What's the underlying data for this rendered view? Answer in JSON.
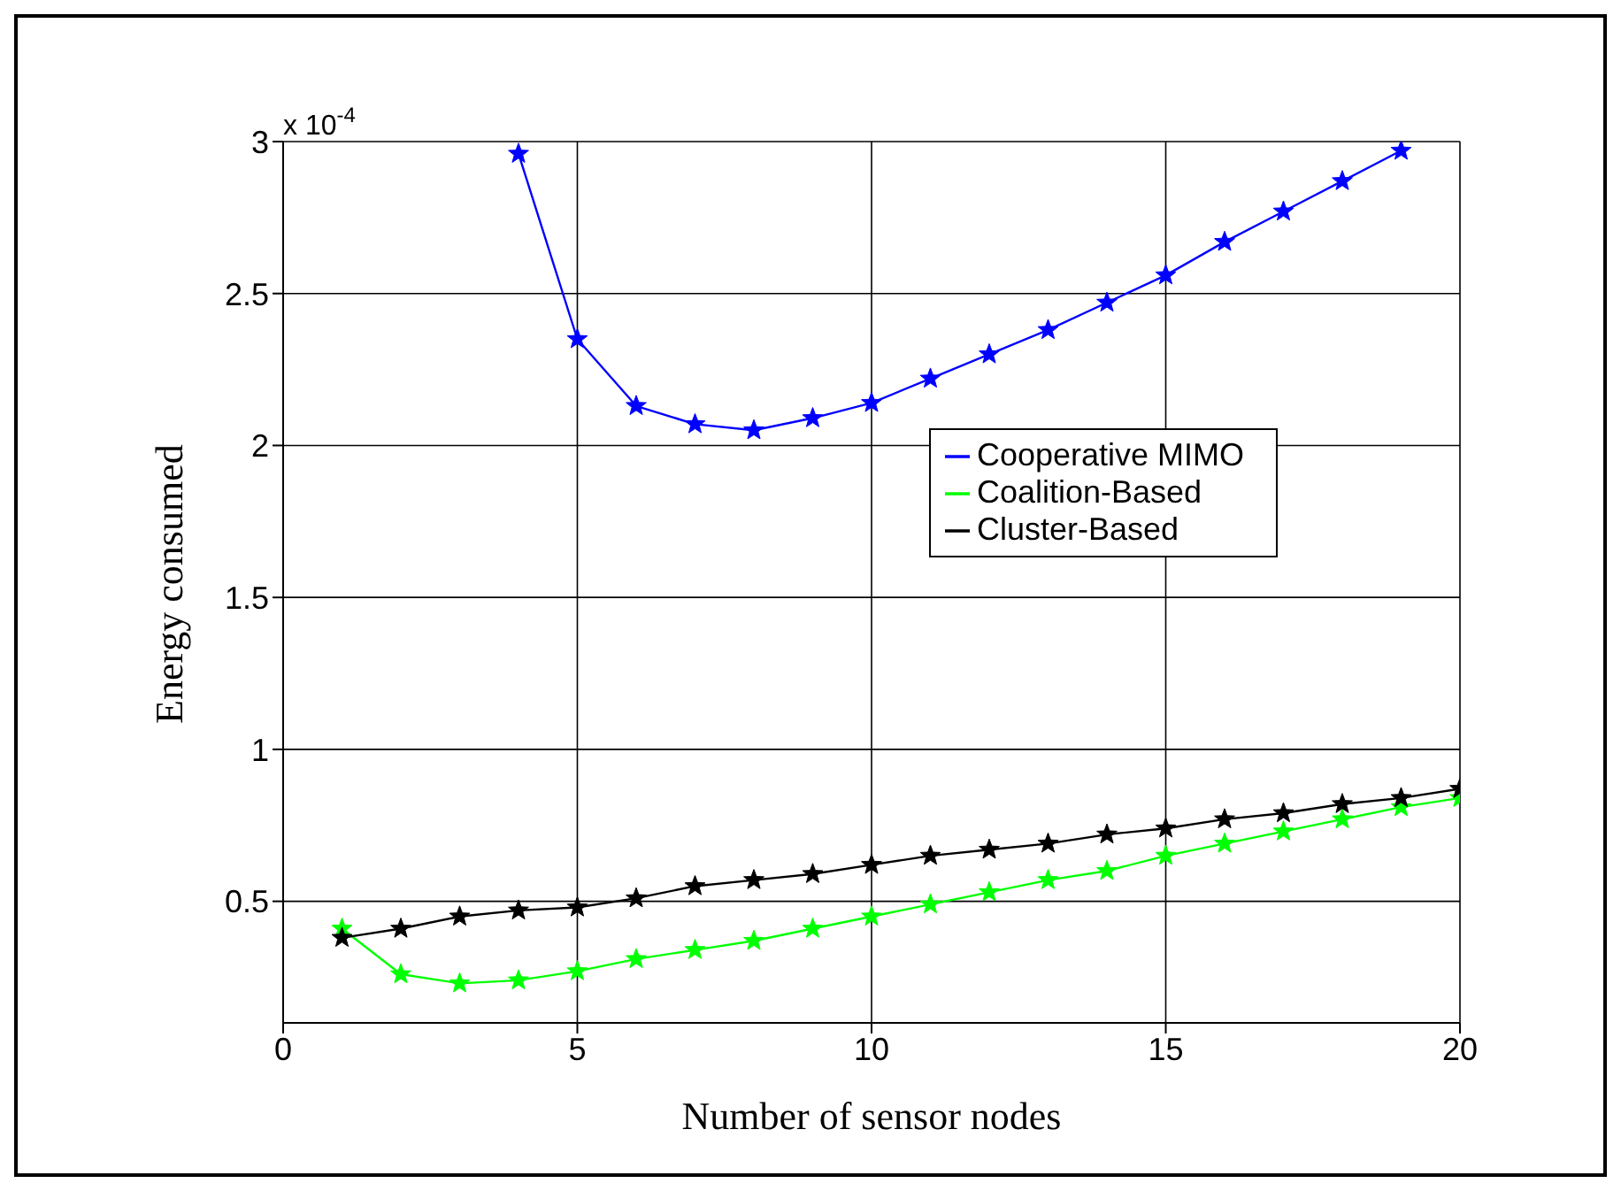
{
  "chart_data": {
    "type": "line",
    "xlabel": "Number of sensor nodes",
    "ylabel": "Energy consumed",
    "annotations": [
      "x 10$^{-4}$"
    ],
    "x": [
      1,
      2,
      3,
      4,
      5,
      6,
      7,
      8,
      9,
      10,
      11,
      12,
      13,
      14,
      15,
      16,
      17,
      18,
      19,
      20
    ],
    "xlim": [
      0,
      20
    ],
    "xticks": [
      0,
      5,
      10,
      15,
      20
    ],
    "ylim": [
      0.1,
      3
    ],
    "yticks": [
      0.5,
      1,
      1.5,
      2,
      2.5,
      3
    ],
    "grid": true,
    "legend": "right",
    "marker": "star",
    "line_style": "solid",
    "series": [
      {
        "name": "Cooperative MIMO",
        "color": "#0000ff",
        "values": [
          null,
          null,
          null,
          2.96,
          2.35,
          2.13,
          2.07,
          2.05,
          2.09,
          2.14,
          2.22,
          2.3,
          2.38,
          2.47,
          2.56,
          2.67,
          2.77,
          2.87,
          2.97,
          null
        ]
      },
      {
        "name": "Coalition-Based",
        "color": "#00ff00",
        "values": [
          0.41,
          0.26,
          0.23,
          0.24,
          0.27,
          0.31,
          0.34,
          0.37,
          0.41,
          0.45,
          0.49,
          0.53,
          0.57,
          0.6,
          0.65,
          0.69,
          0.73,
          0.77,
          0.81,
          0.84
        ]
      },
      {
        "name": "Cluster-Based",
        "color": "#000000",
        "values": [
          0.38,
          0.41,
          0.45,
          0.47,
          0.48,
          0.51,
          0.55,
          0.57,
          0.59,
          0.62,
          0.65,
          0.67,
          0.69,
          0.72,
          0.74,
          0.77,
          0.79,
          0.82,
          0.84,
          0.87
        ]
      }
    ]
  }
}
